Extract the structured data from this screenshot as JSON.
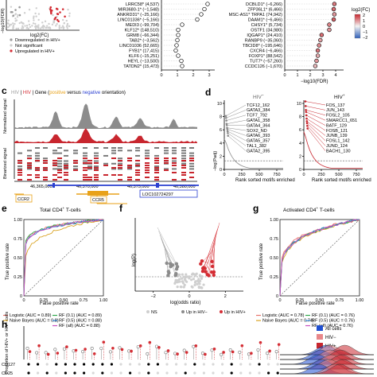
{
  "panel_letters": [
    "c",
    "d",
    "e",
    "f",
    "g",
    "h"
  ],
  "panel_a": {
    "x_label": "log2(FC)",
    "y_label": "−log10(FDR)",
    "legend": [
      "Downregulated in HIV+",
      "Not significant",
      "Upregulated in HIV+"
    ]
  },
  "panel_b_left": {
    "genes": [
      "LRRC58* (4,537)",
      "MIR3680-1* (−1,548)",
      "ANKRD31* (−25,166)",
      "LINC01336* (−5,166)",
      "MEDI3 (−99,704)",
      "KLF12* (148,510)",
      "GRM8 (−66,344)",
      "TAB2* (−3,562)",
      "LINC01036 (52,665)",
      "FYB1* (17,415)",
      "KLF6 (−15,251)",
      "HEYL (−13,500)",
      "TATDN2* (15,473)"
    ],
    "values": [
      2.9,
      2.7,
      2.5,
      2.25,
      1.3,
      1.05,
      1.05,
      1.0,
      0.95,
      0.9,
      1.05,
      1.25,
      1.3
    ],
    "x_ticks": [
      "0",
      "1",
      "2",
      "3"
    ]
  },
  "panel_b_right": {
    "genes": [
      "DCBLD1* (−6,266)",
      "ZFP36L1* (6,466)",
      "MSC-AS1* TRPA1 (74,942)",
      "DAAM1* (−6,466)",
      "CHSY1* (5,734)",
      "OSTF1 (34,980)",
      "IQGAP1* (24,410)",
      "RANBP9 (−35,060)",
      "TBCID8* (−195,646)",
      "CXCR4 (−6,466)",
      "FOXP1* (88,542)",
      "TUT7* (−57,260)",
      "CCDC126 (−1,670)"
    ],
    "values": [
      3.9,
      3.85,
      3.9,
      3.85,
      3.5,
      3.5,
      2.9,
      2.8,
      2.7,
      2.6,
      2.6,
      2.5,
      2.4
    ],
    "colorvals": [
      1.2,
      1.3,
      0.9,
      1.4,
      1.1,
      0.9,
      1.3,
      0.8,
      1.0,
      1.2,
      0.7,
      0.9,
      0.6
    ],
    "x_ticks": [
      "0",
      "1",
      "2",
      "3",
      "4"
    ],
    "x_label": "−log10(FDR)",
    "colorbar_title": "log2(FC)",
    "colorbar_ticks": [
      "2",
      "1",
      "0",
      "−1",
      "−2"
    ]
  },
  "panel_c": {
    "header_plain": "HIV",
    "header_plain2": " | ",
    "header_red": "HIV",
    "header_gene": " | Gene (",
    "header_pos": "positive",
    "header_vs": " versus ",
    "header_neg": "negative",
    "header_end": " orientation)",
    "ylabel_top": "Normalized signal",
    "ylabel_bottom": "Binarized signal",
    "coords": [
      "46,365,000",
      "46,370,000",
      "46,375,000",
      "46,380,000"
    ],
    "genes": [
      "CCR2",
      "CCR5",
      "LOC102724297"
    ]
  },
  "panel_d": {
    "left_title": "HIV",
    "right_title": "HIV",
    "y_label": "−log(Padj)",
    "y_ticks": [
      "10",
      "8",
      "6",
      "4",
      "2",
      "0"
    ],
    "x_ticks": [
      "0",
      "250",
      "500",
      "750"
    ],
    "x_label": "Rank sorted motifs enriched",
    "left_motifs": [
      "TCF12_162",
      "GATA3_384",
      "TCF7_792",
      "GATA1_358",
      "GATA4_364",
      "SOX2_ND",
      "GATA6_393",
      "GATA5_357",
      "TAL1_382",
      "GATA2_395"
    ],
    "right_motifs": [
      "FOS_137",
      "JUN_143",
      "FOSL2_105",
      "SMARCC1_651",
      "BATF_129",
      "FOSB_121",
      "JUNB_139",
      "FOSL1_142",
      "JUND_124",
      "BACH1_130"
    ],
    "left_values": [
      8.1,
      7.8,
      7.4,
      6.9,
      6.7,
      6.3,
      6.1,
      5.8,
      5.5,
      5.1
    ],
    "right_values": [
      10.3,
      9.6,
      9.0,
      8.7,
      8.2,
      7.7,
      7.3,
      7.0,
      6.6,
      6.2
    ]
  },
  "panel_e": {
    "title": "Total CD4+ T-cells",
    "x_label": "False positive rate",
    "y_label": "True positive rate",
    "ticks": [
      "0",
      "0.25",
      "0.50",
      "0.75",
      "1.00"
    ],
    "legend": [
      "Logistic (AUC = 0.89)",
      "Naive Bayes (AUC = 0.8)",
      "RF (0.1) (AUC = 0.89)",
      "RF (0.5) (AUC = 0.88)",
      "RF (all) (AUC = 0.88)"
    ],
    "colors": [
      "#e8736b",
      "#d9a322",
      "#2ea84a",
      "#2f7fd0",
      "#c84fc1"
    ]
  },
  "panel_f": {
    "x_label": "log(odds ratio)",
    "y_label": "log(P)",
    "x_ticks": [
      "−2",
      "0",
      "2"
    ],
    "legend": [
      "NS",
      "Up in HIV−",
      "Up in HIV+"
    ]
  },
  "panel_g": {
    "title": "Activated CD4+ T-cells",
    "x_label": "False positive rate",
    "y_label": "True positive rate",
    "ticks": [
      "0",
      "0.25",
      "0.50",
      "0.75",
      "1.00"
    ],
    "legend": [
      "Logistic (AUC = 0.78)",
      "Naive Bayes (AUC = 0.74)",
      "RF (0.1) (AUC = 0.76)",
      "RF (0.5) (AUC = 0.76)",
      "RF (all) (AUC = 0.76)"
    ],
    "colors": [
      "#e8736b",
      "#d9a322",
      "#2ea84a",
      "#2f7fd0",
      "#c84fc1"
    ]
  },
  "panel_h": {
    "y_label": "Proportion of HIV+ or HIV− cells",
    "row_labels": [
      "CD127",
      "CD25"
    ],
    "legend": [
      "All cells",
      "HIV−",
      "HIV+"
    ],
    "legend_colors": [
      "#1f4fd1",
      "#e8878a",
      "#c8262e"
    ]
  }
}
